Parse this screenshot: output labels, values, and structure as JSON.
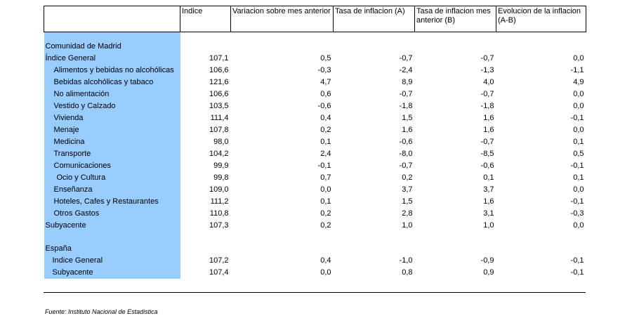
{
  "headers": [
    "",
    "Indice",
    "Variacion sobre mes anterior",
    "Tasa de inflacion (A)",
    "Tasa de inflacion mes anterior (B)",
    "Evolucion de la inflacion (A-B)"
  ],
  "madrid": {
    "title": "Comunidad de Madrid",
    "rows": [
      {
        "label": "Índice General",
        "v": [
          "107,1",
          "0,5",
          "-0,7",
          "-0,7",
          "0,0"
        ]
      },
      {
        "label": "Alimentos y bebidas no alcohólicas",
        "v": [
          "106,6",
          "-0,3",
          "-2,4",
          "-1,3",
          "-1,1"
        ]
      },
      {
        "label": "Bebidas alcohólicas y tabaco",
        "v": [
          "121,6",
          "4,7",
          "8,9",
          "4,0",
          "4,9"
        ]
      },
      {
        "label": "No alimentación",
        "v": [
          "106,6",
          "0,6",
          "-0,7",
          "-0,7",
          "0,0"
        ]
      },
      {
        "label": "Vestido y Calzado",
        "v": [
          "103,5",
          "-0,6",
          "-1,8",
          "-1,8",
          "0,0"
        ]
      },
      {
        "label": "Vivienda",
        "v": [
          "111,4",
          "0,4",
          "1,5",
          "1,6",
          "-0,1"
        ]
      },
      {
        "label": "Menaje",
        "v": [
          "107,8",
          "0,2",
          "1,6",
          "1,6",
          "0,0"
        ]
      },
      {
        "label": "Medicina",
        "v": [
          "98,0",
          "0,1",
          "-0,6",
          "-0,7",
          "0,1"
        ]
      },
      {
        "label": "Transporte",
        "v": [
          "104,2",
          "2,4",
          "-8,0",
          "-8,5",
          "0,5"
        ]
      },
      {
        "label": "Comunicaciones",
        "v": [
          "99,9",
          "-0,1",
          "-0,7",
          "-0,6",
          "-0,1"
        ]
      },
      {
        "label": "Ocio y Cultura",
        "v": [
          "99,8",
          "0,7",
          "0,2",
          "0,1",
          "0,1"
        ]
      },
      {
        "label": "Enseñanza",
        "v": [
          "109,0",
          "0,0",
          "3,7",
          "3,7",
          "0,0"
        ]
      },
      {
        "label": "Hoteles, Cafes y Restaurantes",
        "v": [
          "111,2",
          "0,1",
          "1,5",
          "1,6",
          "-0,1"
        ]
      },
      {
        "label": "Otros Gastos",
        "v": [
          "110,8",
          "0,2",
          "2,8",
          "3,1",
          "-0,3"
        ]
      },
      {
        "label": "Subyacente",
        "v": [
          "107,3",
          "0,2",
          "1,0",
          "1,0",
          "0,0"
        ]
      }
    ]
  },
  "espana": {
    "title": "España",
    "rows": [
      {
        "label": "Indice General",
        "v": [
          "107,2",
          "0,4",
          "-1,0",
          "-0,9",
          "-0,1"
        ]
      },
      {
        "label": "Subyacente",
        "v": [
          "107,4",
          "0,0",
          "0,8",
          "0,9",
          "-0,1"
        ]
      }
    ]
  },
  "source": "Fuente: Instituto Nacional de Estadistica",
  "colors": {
    "label_bg": "#99ccff"
  }
}
